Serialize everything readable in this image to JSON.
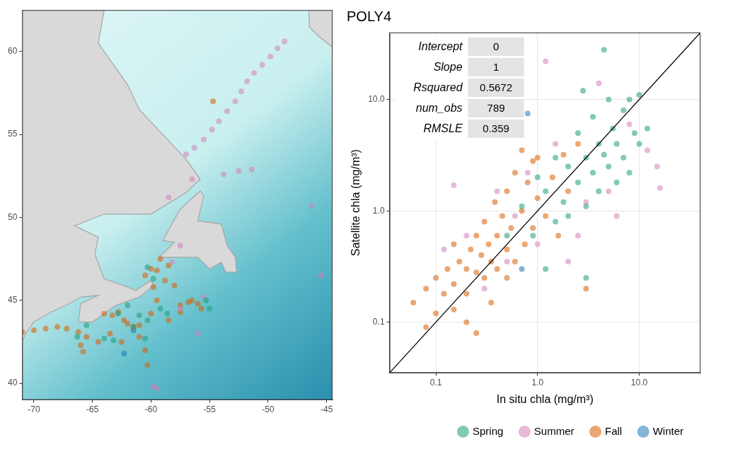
{
  "chart_data": [
    {
      "type": "scatter",
      "xlim": [
        -71,
        -44.5
      ],
      "ylim": [
        39,
        62.5
      ],
      "xticks": [
        -70,
        -65,
        -60,
        -55,
        -50,
        -45
      ],
      "yticks": [
        40,
        45,
        50,
        55,
        60
      ],
      "grid": false,
      "series": [
        {
          "name": "Spring",
          "color": "#1b9e77",
          "values": [
            [
              -60.3,
              47
            ],
            [
              -59.8,
              46.3
            ],
            [
              -62,
              44.7
            ],
            [
              -62.8,
              44.2
            ],
            [
              -61.5,
              43.4
            ],
            [
              -60.5,
              42.7
            ],
            [
              -65.5,
              43.5
            ],
            [
              -66.3,
              42.8
            ],
            [
              -64,
              42.7
            ],
            [
              -58.6,
              44.2
            ],
            [
              -55.3,
              45
            ],
            [
              -55,
              44.5
            ],
            [
              -59.2,
              44.5
            ],
            [
              -60.3,
              43.8
            ],
            [
              -61,
              44.1
            ],
            [
              -63.2,
              42.6
            ]
          ]
        },
        {
          "name": "Summer",
          "color": "#d47fb9",
          "values": [
            [
              -48.6,
              60.6
            ],
            [
              -49.2,
              60.2
            ],
            [
              -49.8,
              59.7
            ],
            [
              -50.5,
              59.2
            ],
            [
              -51.2,
              58.7
            ],
            [
              -51.8,
              58.2
            ],
            [
              -52.3,
              57.6
            ],
            [
              -52.8,
              57.0
            ],
            [
              -53.5,
              56.4
            ],
            [
              -54.2,
              55.8
            ],
            [
              -54.8,
              55.3
            ],
            [
              -55.5,
              54.7
            ],
            [
              -56.3,
              54.2
            ],
            [
              -57.0,
              53.8
            ],
            [
              -52.5,
              52.8
            ],
            [
              -51.4,
              52.9
            ],
            [
              -53.8,
              52.6
            ],
            [
              -56.5,
              52.3
            ],
            [
              -58.5,
              51.2
            ],
            [
              -46.3,
              50.7
            ],
            [
              -45.5,
              46.5
            ],
            [
              -57.5,
              48.3
            ],
            [
              -58.2,
              47.3
            ],
            [
              -55.5,
              45.2
            ],
            [
              -56,
              43
            ],
            [
              -59.5,
              39.7
            ],
            [
              -59.8,
              39.8
            ],
            [
              -57.5,
              44.5
            ]
          ]
        },
        {
          "name": "Fall",
          "color": "#d95f02",
          "values": [
            [
              -71,
              43.1
            ],
            [
              -70,
              43.2
            ],
            [
              -69,
              43.3
            ],
            [
              -68,
              43.4
            ],
            [
              -67.2,
              43.3
            ],
            [
              -66.2,
              43.1
            ],
            [
              -65.5,
              42.8
            ],
            [
              -66,
              42.3
            ],
            [
              -65.8,
              41.9
            ],
            [
              -64.5,
              42.5
            ],
            [
              -63.5,
              43.0
            ],
            [
              -62.5,
              42.5
            ],
            [
              -62,
              43.6
            ],
            [
              -62.8,
              44.3
            ],
            [
              -63.3,
              44.1
            ],
            [
              -61.5,
              43.4
            ],
            [
              -61,
              42.8
            ],
            [
              -60.5,
              42.0
            ],
            [
              -60.3,
              41.1
            ],
            [
              -61,
              43.5
            ],
            [
              -60,
              44.2
            ],
            [
              -58.5,
              43.8
            ],
            [
              -57.5,
              44.3
            ],
            [
              -59.5,
              45
            ],
            [
              -59.8,
              45.8
            ],
            [
              -60.5,
              46.5
            ],
            [
              -59.5,
              46.8
            ],
            [
              -59.2,
              47.5
            ],
            [
              -58.5,
              47.1
            ],
            [
              -60,
              46.9
            ],
            [
              -56.5,
              45
            ],
            [
              -57.5,
              44.7
            ],
            [
              -56,
              44.8
            ],
            [
              -55.7,
              44.5
            ],
            [
              -54.7,
              57
            ],
            [
              -64,
              44.2
            ],
            [
              -62.3,
              43.8
            ],
            [
              -58.8,
              46.2
            ],
            [
              -58,
              45.9
            ],
            [
              -56.8,
              44.9
            ]
          ]
        },
        {
          "name": "Winter",
          "color": "#1f78b4",
          "values": [
            [
              -61.5,
              43.2
            ],
            [
              -62.3,
              41.8
            ]
          ]
        }
      ]
    },
    {
      "type": "scatter",
      "title": "POLY4",
      "x_label": "In situ chla (mg/m³)",
      "y_label": "Satellite chla (mg/m³)",
      "log": true,
      "grid": true,
      "legend": "bottom",
      "xlim": [
        0.035,
        40
      ],
      "ylim": [
        0.035,
        40
      ],
      "xticks": [
        {
          "value": 0.1,
          "label": "0.1"
        },
        {
          "value": 1,
          "label": "1.0"
        },
        {
          "value": 10,
          "label": "10.0"
        }
      ],
      "yticks": [
        {
          "value": 0.1,
          "label": "0.1"
        },
        {
          "value": 1,
          "label": "1.0"
        },
        {
          "value": 10,
          "label": "10.0"
        }
      ],
      "stats": [
        {
          "label": "Intercept",
          "value": 0
        },
        {
          "label": "Slope",
          "value": 1
        },
        {
          "label": "Rsquared",
          "value": 0.5672
        },
        {
          "label": "num_obs",
          "value": 789
        },
        {
          "label": "RMSLE",
          "value": 0.359
        }
      ],
      "series": [
        {
          "name": "Spring",
          "color": "#1b9e77",
          "values": [
            [
              0.5,
              0.6
            ],
            [
              0.7,
              1.1
            ],
            [
              0.9,
              0.6
            ],
            [
              1.0,
              2.0
            ],
            [
              1.2,
              1.5
            ],
            [
              1.5,
              0.8
            ],
            [
              1.5,
              3.0
            ],
            [
              1.8,
              1.2
            ],
            [
              2.0,
              2.5
            ],
            [
              2.0,
              0.9
            ],
            [
              2.5,
              1.8
            ],
            [
              2.5,
              5.0
            ],
            [
              3.0,
              3.0
            ],
            [
              3.0,
              1.1
            ],
            [
              3.5,
              2.2
            ],
            [
              3.5,
              7.0
            ],
            [
              4.0,
              4.0
            ],
            [
              4.0,
              1.5
            ],
            [
              4.5,
              3.2
            ],
            [
              5.0,
              10.0
            ],
            [
              5.0,
              2.5
            ],
            [
              5.5,
              5.5
            ],
            [
              6.0,
              1.8
            ],
            [
              6.0,
              4.0
            ],
            [
              7.0,
              8.0
            ],
            [
              7.0,
              3.0
            ],
            [
              8.0,
              2.2
            ],
            [
              8.0,
              10.0
            ],
            [
              9.0,
              5.0
            ],
            [
              10.0,
              4.0
            ],
            [
              10.0,
              11.0
            ],
            [
              4.5,
              28
            ],
            [
              3,
              0.25
            ],
            [
              12,
              5.5
            ],
            [
              1.2,
              0.3
            ],
            [
              2.8,
              12
            ]
          ]
        },
        {
          "name": "Summer",
          "color": "#d47fb9",
          "values": [
            [
              0.12,
              0.45
            ],
            [
              0.15,
              1.7
            ],
            [
              0.3,
              0.2
            ],
            [
              0.4,
              1.5
            ],
            [
              0.6,
              0.9
            ],
            [
              0.8,
              2.2
            ],
            [
              1.0,
              0.5
            ],
            [
              1.5,
              4.0
            ],
            [
              2.0,
              0.35
            ],
            [
              2.5,
              0.6
            ],
            [
              3.0,
              1.2
            ],
            [
              4.0,
              14
            ],
            [
              5.0,
              1.5
            ],
            [
              6.0,
              0.9
            ],
            [
              8.0,
              6.0
            ],
            [
              12.0,
              3.5
            ],
            [
              15.0,
              2.5
            ],
            [
              16,
              1.6
            ],
            [
              0.5,
              0.35
            ],
            [
              1.2,
              22
            ],
            [
              0.2,
              0.6
            ]
          ]
        },
        {
          "name": "Fall",
          "color": "#d95f02",
          "values": [
            [
              0.06,
              0.15
            ],
            [
              0.08,
              0.2
            ],
            [
              0.08,
              0.09
            ],
            [
              0.1,
              0.12
            ],
            [
              0.1,
              0.25
            ],
            [
              0.12,
              0.18
            ],
            [
              0.13,
              0.3
            ],
            [
              0.15,
              0.22
            ],
            [
              0.15,
              0.13
            ],
            [
              0.17,
              0.35
            ],
            [
              0.2,
              0.3
            ],
            [
              0.2,
              0.18
            ],
            [
              0.22,
              0.45
            ],
            [
              0.25,
              0.28
            ],
            [
              0.25,
              0.6
            ],
            [
              0.28,
              0.4
            ],
            [
              0.3,
              0.25
            ],
            [
              0.3,
              0.8
            ],
            [
              0.33,
              0.5
            ],
            [
              0.35,
              0.35
            ],
            [
              0.38,
              1.2
            ],
            [
              0.4,
              0.6
            ],
            [
              0.4,
              0.3
            ],
            [
              0.45,
              0.9
            ],
            [
              0.5,
              0.45
            ],
            [
              0.5,
              1.5
            ],
            [
              0.55,
              0.7
            ],
            [
              0.6,
              0.35
            ],
            [
              0.6,
              2.2
            ],
            [
              0.7,
              1.0
            ],
            [
              0.75,
              0.5
            ],
            [
              0.8,
              1.8
            ],
            [
              0.9,
              0.7
            ],
            [
              1.0,
              1.3
            ],
            [
              1.0,
              3.0
            ],
            [
              1.2,
              0.9
            ],
            [
              1.4,
              2.0
            ],
            [
              1.6,
              0.6
            ],
            [
              2.0,
              1.5
            ],
            [
              2.5,
              4.0
            ],
            [
              3.0,
              0.2
            ],
            [
              0.2,
              0.1
            ],
            [
              0.25,
              0.08
            ],
            [
              0.35,
              0.15
            ],
            [
              0.5,
              0.25
            ],
            [
              0.7,
              3.5
            ],
            [
              0.9,
              2.8
            ],
            [
              1.8,
              3.2
            ],
            [
              0.15,
              0.5
            ]
          ]
        },
        {
          "name": "Winter",
          "color": "#1f78b4",
          "values": [
            [
              0.8,
              7.5
            ],
            [
              0.7,
              0.3
            ]
          ]
        }
      ]
    }
  ]
}
